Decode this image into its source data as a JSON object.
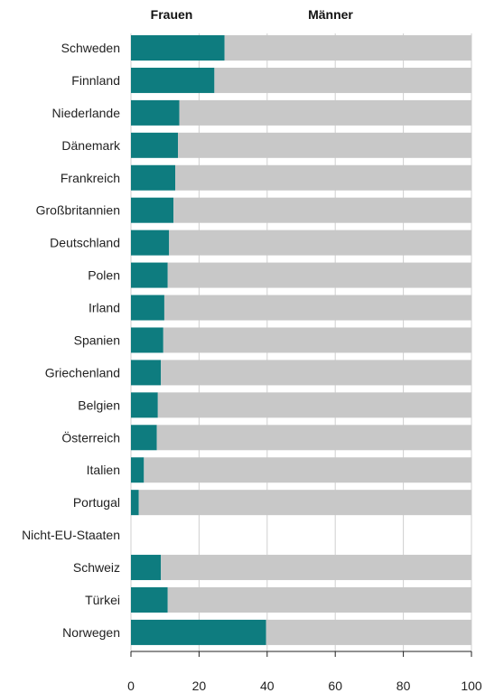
{
  "chart_data": {
    "type": "bar",
    "orientation": "horizontal",
    "stacked": true,
    "categories": [
      "Schweden",
      "Finnland",
      "Niederlande",
      "Dänemark",
      "Frankreich",
      "Großbritannien",
      "Deutschland",
      "Polen",
      "Irland",
      "Spanien",
      "Griechenland",
      "Belgien",
      "Österreich",
      "Italien",
      "Portugal",
      "Nicht-EU-Staaten",
      "Schweiz",
      "Türkei",
      "Norwegen"
    ],
    "series": [
      {
        "name": "Frauen",
        "color": "#0e7c7f",
        "values": [
          27.5,
          24.5,
          14.2,
          13.8,
          13.0,
          12.5,
          11.2,
          10.8,
          9.8,
          9.5,
          8.8,
          7.9,
          7.6,
          3.8,
          2.3,
          0,
          8.8,
          10.8,
          39.7
        ]
      },
      {
        "name": "Männer",
        "color": "#c8c8c8",
        "values": [
          72.5,
          75.5,
          85.8,
          86.2,
          87.0,
          87.5,
          88.8,
          89.2,
          90.2,
          90.5,
          91.2,
          92.1,
          92.4,
          96.2,
          97.7,
          0,
          91.2,
          89.2,
          60.3
        ]
      }
    ],
    "xlim": [
      0,
      100
    ],
    "xticks": [
      "0",
      "20",
      "40",
      "60",
      "80",
      "100"
    ],
    "legend_position": "top",
    "grid": true
  }
}
